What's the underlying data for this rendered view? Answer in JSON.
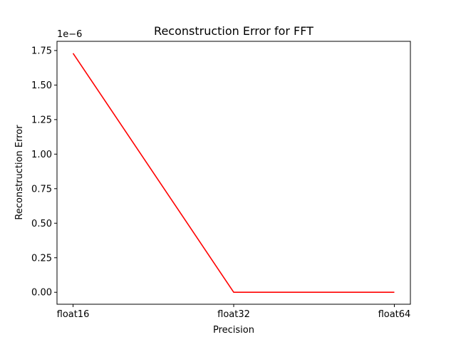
{
  "chart_data": {
    "type": "line",
    "title": "Reconstruction Error for FFT",
    "xlabel": "Precision",
    "ylabel": "Reconstruction Error",
    "y_multiplier_label": "1e−6",
    "categories": [
      "float16",
      "float32",
      "float64"
    ],
    "series": [
      {
        "color": "#ff0000",
        "values": [
          1.73e-06,
          0.0,
          0.0
        ]
      }
    ],
    "yticks": [
      0.0,
      0.25,
      0.5,
      0.75,
      1.0,
      1.25,
      1.5,
      1.75
    ],
    "ytick_labels": [
      "0.00",
      "0.25",
      "0.50",
      "0.75",
      "1.00",
      "1.25",
      "1.50",
      "1.75"
    ],
    "ylim": [
      -8.65e-08,
      1.8165e-06
    ],
    "ytick_scale": 1e-06,
    "grid": false,
    "legend": "none"
  }
}
